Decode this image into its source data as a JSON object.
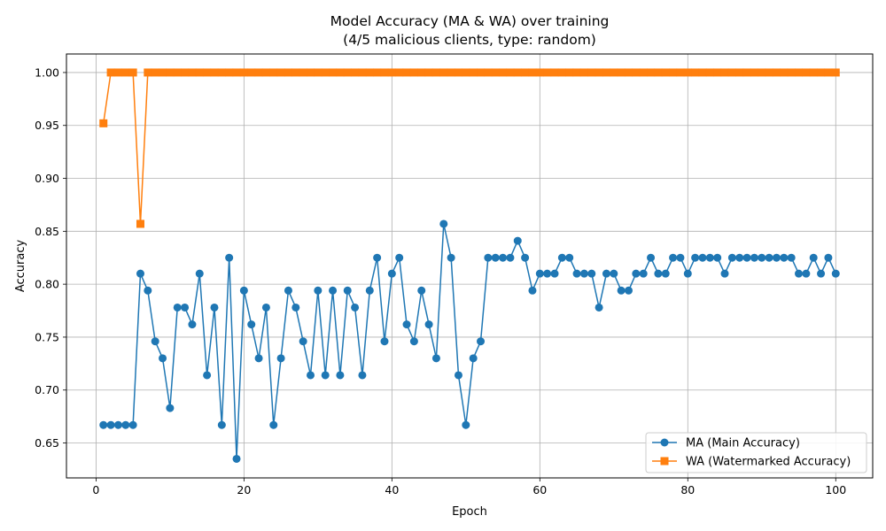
{
  "chart_data": {
    "type": "line",
    "title": "Model Accuracy (MA & WA) over training",
    "subtitle": "(4/5 malicious clients, type: random)",
    "xlabel": "Epoch",
    "ylabel": "Accuracy",
    "xlim": [
      -4,
      105
    ],
    "ylim": [
      0.617,
      1.0175
    ],
    "xticks": [
      0,
      20,
      40,
      60,
      80,
      100
    ],
    "yticks": [
      0.65,
      0.7,
      0.75,
      0.8,
      0.85,
      0.9,
      0.95,
      1.0
    ],
    "ytick_labels": [
      "0.65",
      "0.70",
      "0.75",
      "0.80",
      "0.85",
      "0.90",
      "0.95",
      "1.00"
    ],
    "grid": true,
    "legend_position": "lower-right",
    "x": [
      1,
      2,
      3,
      4,
      5,
      6,
      7,
      8,
      9,
      10,
      11,
      12,
      13,
      14,
      15,
      16,
      17,
      18,
      19,
      20,
      21,
      22,
      23,
      24,
      25,
      26,
      27,
      28,
      29,
      30,
      31,
      32,
      33,
      34,
      35,
      36,
      37,
      38,
      39,
      40,
      41,
      42,
      43,
      44,
      45,
      46,
      47,
      48,
      49,
      50,
      51,
      52,
      53,
      54,
      55,
      56,
      57,
      58,
      59,
      60,
      61,
      62,
      63,
      64,
      65,
      66,
      67,
      68,
      69,
      70,
      71,
      72,
      73,
      74,
      75,
      76,
      77,
      78,
      79,
      80,
      81,
      82,
      83,
      84,
      85,
      86,
      87,
      88,
      89,
      90,
      91,
      92,
      93,
      94,
      95,
      96,
      97,
      98,
      99,
      100
    ],
    "series": [
      {
        "name": "MA (Main Accuracy)",
        "color": "#1f77b4",
        "marker": "circle",
        "values": [
          0.667,
          0.667,
          0.667,
          0.667,
          0.667,
          0.81,
          0.794,
          0.746,
          0.73,
          0.683,
          0.778,
          0.778,
          0.762,
          0.81,
          0.714,
          0.778,
          0.667,
          0.825,
          0.635,
          0.794,
          0.762,
          0.73,
          0.778,
          0.667,
          0.73,
          0.794,
          0.778,
          0.746,
          0.714,
          0.794,
          0.714,
          0.794,
          0.714,
          0.794,
          0.778,
          0.714,
          0.794,
          0.825,
          0.746,
          0.81,
          0.825,
          0.762,
          0.746,
          0.794,
          0.762,
          0.73,
          0.857,
          0.825,
          0.714,
          0.667,
          0.73,
          0.746,
          0.825,
          0.825,
          0.825,
          0.825,
          0.841,
          0.825,
          0.794,
          0.81,
          0.81,
          0.81,
          0.825,
          0.825,
          0.81,
          0.81,
          0.81,
          0.778,
          0.81,
          0.81,
          0.794,
          0.794,
          0.81,
          0.81,
          0.825,
          0.81,
          0.81,
          0.825,
          0.825,
          0.81,
          0.825,
          0.825,
          0.825,
          0.825,
          0.81,
          0.825,
          0.825,
          0.825,
          0.825,
          0.825,
          0.825,
          0.825,
          0.825,
          0.825,
          0.81,
          0.81,
          0.825,
          0.81,
          0.825,
          0.81
        ]
      },
      {
        "name": "WA (Watermarked Accuracy)",
        "color": "#ff7f0e",
        "marker": "square",
        "values": [
          0.952,
          1.0,
          1.0,
          1.0,
          1.0,
          0.857,
          1.0,
          1.0,
          1.0,
          1.0,
          1.0,
          1.0,
          1.0,
          1.0,
          1.0,
          1.0,
          1.0,
          1.0,
          1.0,
          1.0,
          1.0,
          1.0,
          1.0,
          1.0,
          1.0,
          1.0,
          1.0,
          1.0,
          1.0,
          1.0,
          1.0,
          1.0,
          1.0,
          1.0,
          1.0,
          1.0,
          1.0,
          1.0,
          1.0,
          1.0,
          1.0,
          1.0,
          1.0,
          1.0,
          1.0,
          1.0,
          1.0,
          1.0,
          1.0,
          1.0,
          1.0,
          1.0,
          1.0,
          1.0,
          1.0,
          1.0,
          1.0,
          1.0,
          1.0,
          1.0,
          1.0,
          1.0,
          1.0,
          1.0,
          1.0,
          1.0,
          1.0,
          1.0,
          1.0,
          1.0,
          1.0,
          1.0,
          1.0,
          1.0,
          1.0,
          1.0,
          1.0,
          1.0,
          1.0,
          1.0,
          1.0,
          1.0,
          1.0,
          1.0,
          1.0,
          1.0,
          1.0,
          1.0,
          1.0,
          1.0,
          1.0,
          1.0,
          1.0,
          1.0,
          1.0,
          1.0,
          1.0,
          1.0,
          1.0,
          1.0
        ]
      }
    ]
  }
}
